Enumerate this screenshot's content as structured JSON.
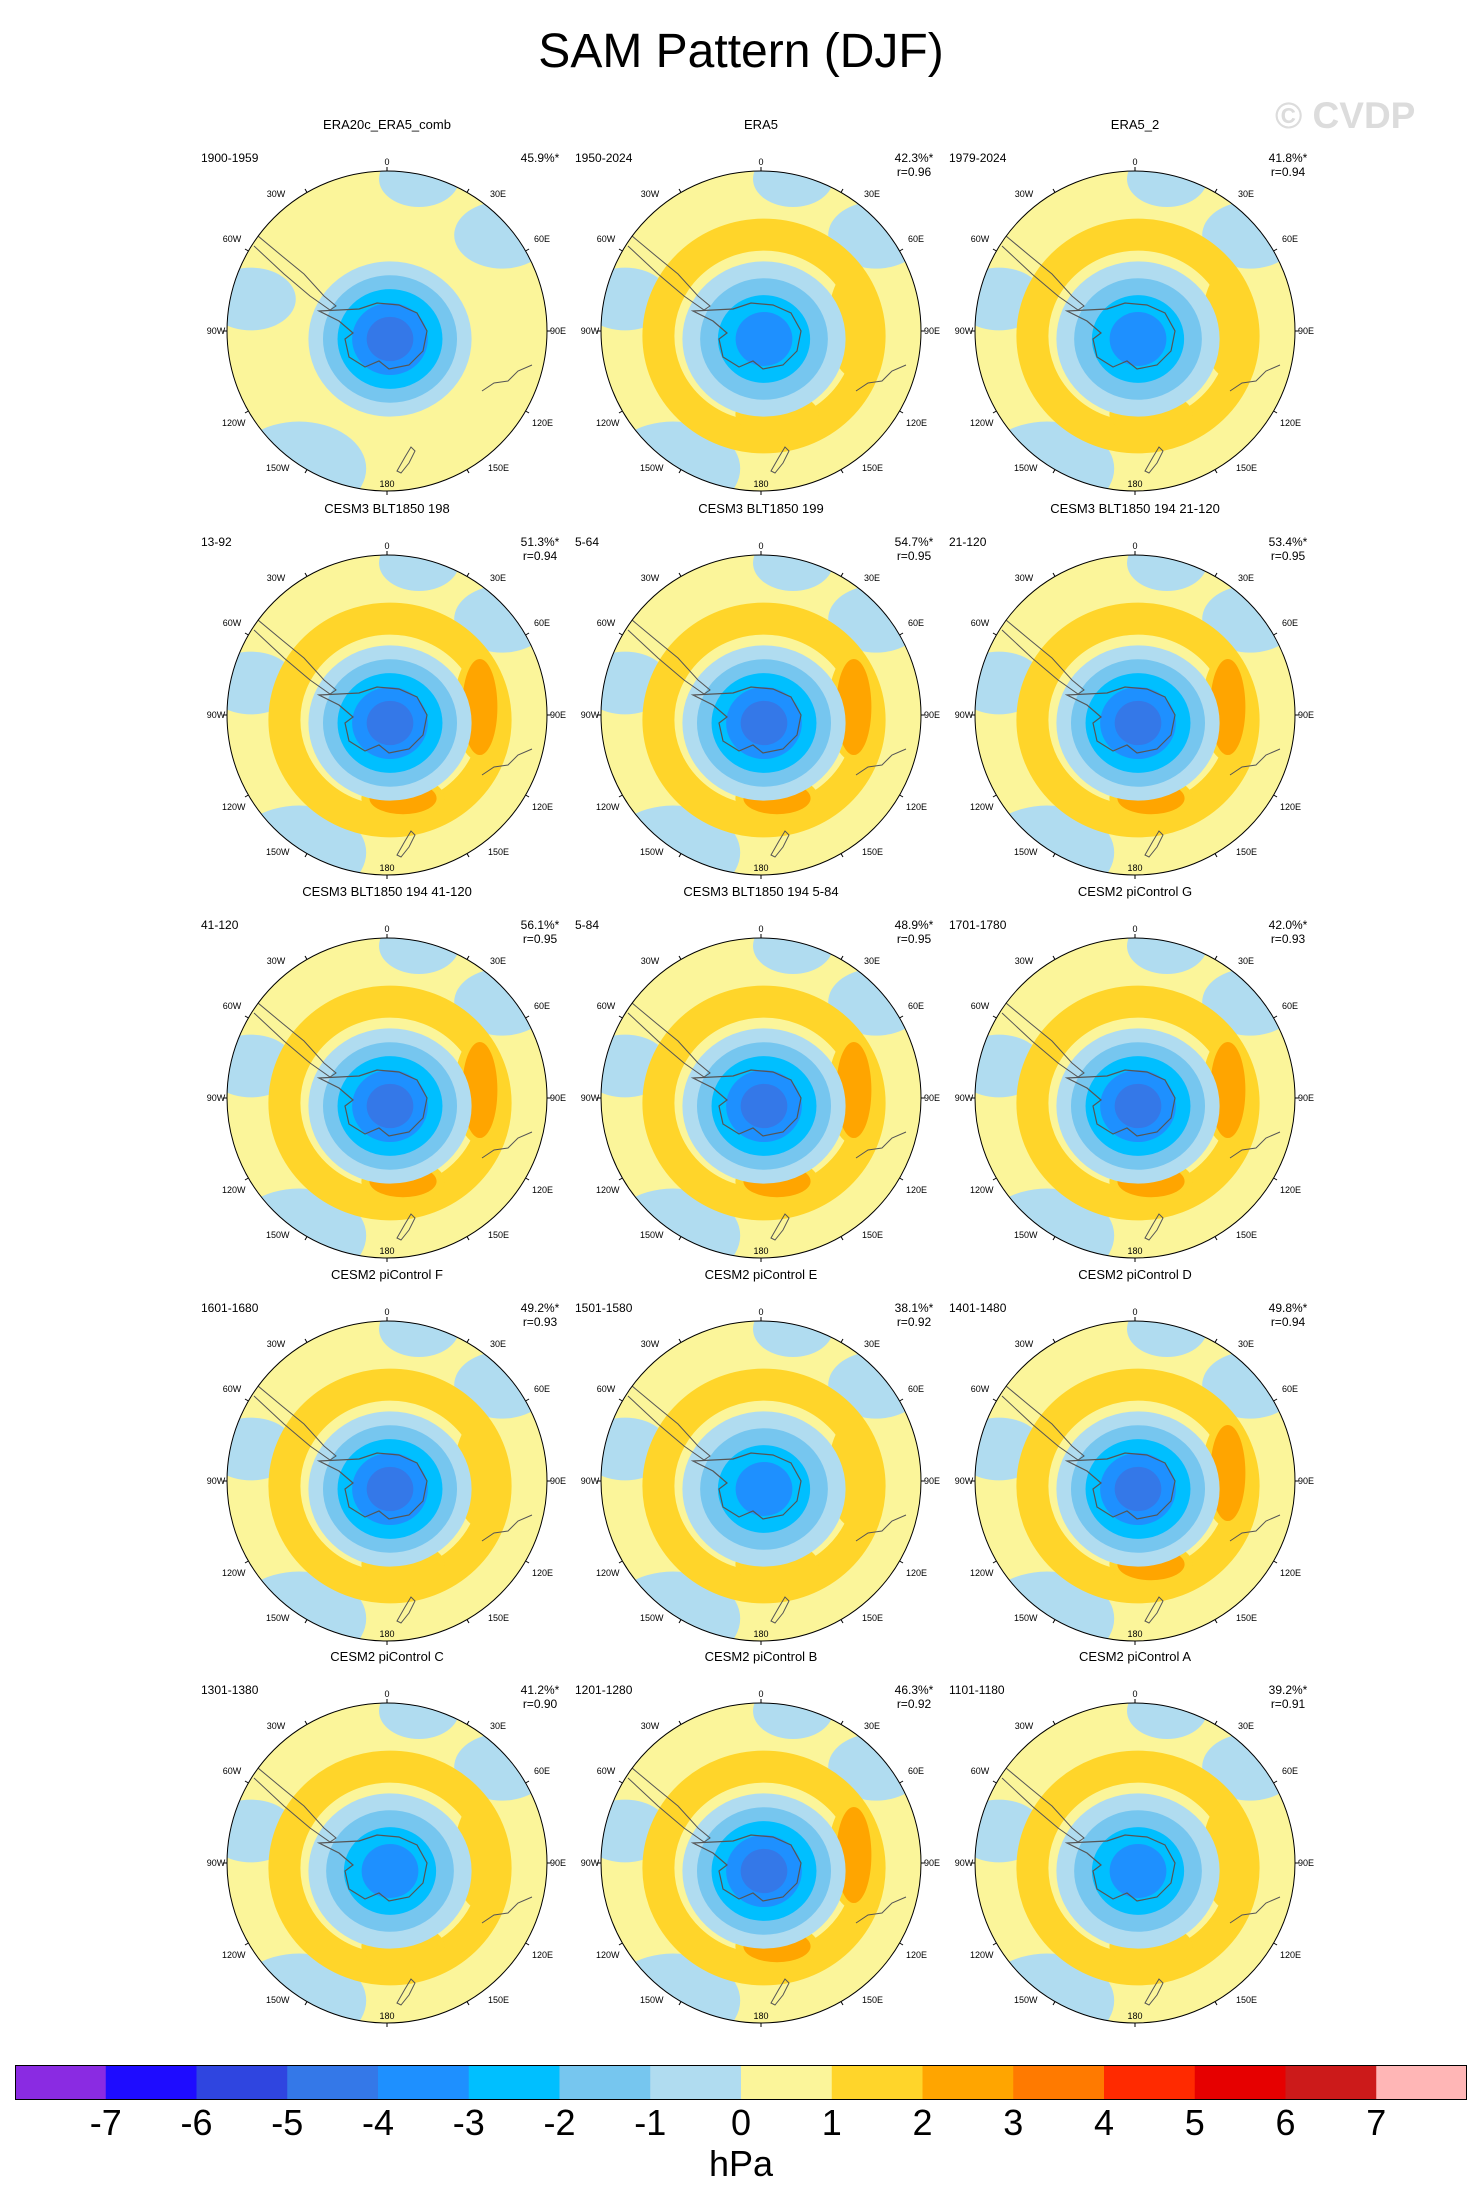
{
  "title": "SAM Pattern (DJF)",
  "watermark": "© CVDP",
  "lon_labels": [
    "0",
    "30E",
    "60E",
    "90E",
    "120E",
    "150E",
    "180",
    "150W",
    "120W",
    "90W",
    "60W",
    "30W"
  ],
  "chart_data": {
    "type": "heatmap",
    "title": "SAM Pattern (DJF)",
    "units": "hPa",
    "colorbar": {
      "ticks": [
        -7,
        -6,
        -5,
        -4,
        -3,
        -2,
        -1,
        0,
        1,
        2,
        3,
        4,
        5,
        6,
        7
      ],
      "tick_labels": [
        "-7",
        "-6",
        "-5",
        "-4",
        "-3",
        "-2",
        "-1",
        "0",
        "1",
        "2",
        "3",
        "4",
        "5",
        "6",
        "7"
      ],
      "colors": [
        "#8a2be2",
        "#1e0cff",
        "#2f45e0",
        "#3478e8",
        "#1e90ff",
        "#00bfff",
        "#76c6ef",
        "#b0dcf0",
        "#fbf59a",
        "#ffd52a",
        "#ffa500",
        "#ff7a00",
        "#ff2a00",
        "#e60000",
        "#cc1a1a",
        "#ffb6b6"
      ]
    },
    "panels": [
      {
        "title": "ERA20c_ERA5_comb",
        "years": "1900-1959",
        "variance": "45.9%*",
        "correlation": "",
        "center": -4.5,
        "ring": 0.8,
        "lobe": 0.3
      },
      {
        "title": "ERA5",
        "years": "1950-2024",
        "variance": "42.3%*",
        "correlation": "r=0.96",
        "center": -3.8,
        "ring": 1.3,
        "lobe": 1.4
      },
      {
        "title": "ERA5_2",
        "years": "1979-2024",
        "variance": "41.8%*",
        "correlation": "r=0.94",
        "center": -4.0,
        "ring": 1.3,
        "lobe": 1.3
      },
      {
        "title": "CESM3 BLT1850 198",
        "years": "13-92",
        "variance": "51.3%*",
        "correlation": "r=0.94",
        "center": -5.0,
        "ring": 1.8,
        "lobe": 2.2
      },
      {
        "title": "CESM3 BLT1850 199",
        "years": "5-64",
        "variance": "54.7%*",
        "correlation": "r=0.95",
        "center": -4.8,
        "ring": 1.6,
        "lobe": 2.3
      },
      {
        "title": "CESM3 BLT1850 194 21-120",
        "years": "21-120",
        "variance": "53.4%*",
        "correlation": "r=0.95",
        "center": -4.9,
        "ring": 1.8,
        "lobe": 2.1
      },
      {
        "title": "CESM3 BLT1850 194 41-120",
        "years": "41-120",
        "variance": "56.1%*",
        "correlation": "r=0.95",
        "center": -5.0,
        "ring": 1.8,
        "lobe": 2.2
      },
      {
        "title": "CESM3 BLT1850 194 5-84",
        "years": "5-84",
        "variance": "48.9%*",
        "correlation": "r=0.95",
        "center": -4.6,
        "ring": 1.8,
        "lobe": 2.1
      },
      {
        "title": "CESM2 piControl G",
        "years": "1701-1780",
        "variance": "42.0%*",
        "correlation": "r=0.93",
        "center": -4.6,
        "ring": 1.5,
        "lobe": 2.3
      },
      {
        "title": "CESM2 piControl F",
        "years": "1601-1680",
        "variance": "49.2%*",
        "correlation": "r=0.93",
        "center": -5.0,
        "ring": 1.6,
        "lobe": 1.8
      },
      {
        "title": "CESM2 piControl E",
        "years": "1501-1580",
        "variance": "38.1%*",
        "correlation": "r=0.92",
        "center": -4.1,
        "ring": 1.5,
        "lobe": 1.5
      },
      {
        "title": "CESM2 piControl D",
        "years": "1401-1480",
        "variance": "49.8%*",
        "correlation": "r=0.94",
        "center": -4.7,
        "ring": 1.7,
        "lobe": 2.4
      },
      {
        "title": "CESM2 piControl C",
        "years": "1301-1380",
        "variance": "41.2%*",
        "correlation": "r=0.90",
        "center": -3.9,
        "ring": 1.6,
        "lobe": 1.4
      },
      {
        "title": "CESM2 piControl B",
        "years": "1201-1280",
        "variance": "46.3%*",
        "correlation": "r=0.92",
        "center": -4.6,
        "ring": 1.6,
        "lobe": 2.5
      },
      {
        "title": "CESM2 piControl A",
        "years": "1101-1180",
        "variance": "39.2%*",
        "correlation": "r=0.91",
        "center": -4.1,
        "ring": 1.5,
        "lobe": 1.4
      }
    ]
  }
}
